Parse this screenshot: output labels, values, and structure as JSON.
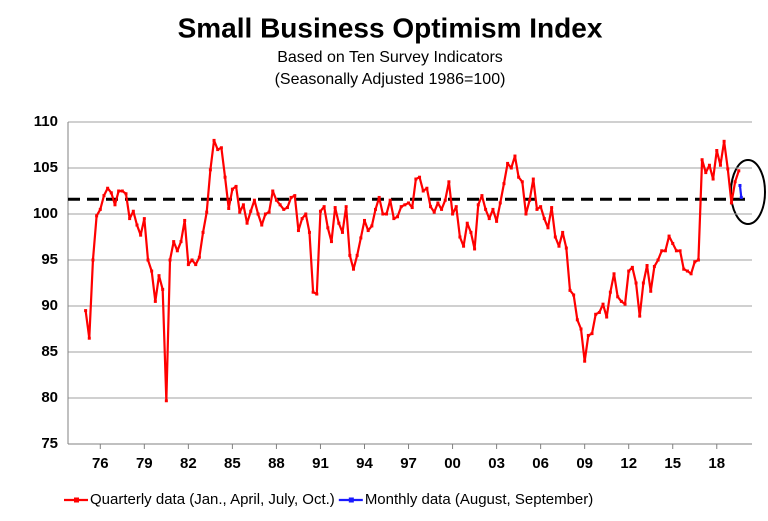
{
  "chart_data": {
    "type": "line",
    "title": "Small Business Optimism Index",
    "subtitle": [
      "Based on Ten Survey Indicators",
      "(Seasonally Adjusted 1986=100)"
    ],
    "xlim": [
      1973.8,
      2020.4
    ],
    "xticks": [
      {
        "value": 1976,
        "label": "76"
      },
      {
        "value": 1979,
        "label": "79"
      },
      {
        "value": 1982,
        "label": "82"
      },
      {
        "value": 1985,
        "label": "85"
      },
      {
        "value": 1988,
        "label": "88"
      },
      {
        "value": 1991,
        "label": "91"
      },
      {
        "value": 1994,
        "label": "94"
      },
      {
        "value": 1997,
        "label": "97"
      },
      {
        "value": 2000,
        "label": "00"
      },
      {
        "value": 2003,
        "label": "03"
      },
      {
        "value": 2006,
        "label": "06"
      },
      {
        "value": 2009,
        "label": "09"
      },
      {
        "value": 2012,
        "label": "12"
      },
      {
        "value": 2015,
        "label": "15"
      },
      {
        "value": 2018,
        "label": "18"
      }
    ],
    "ylim": [
      75,
      110
    ],
    "yticks": [
      75,
      80,
      85,
      90,
      95,
      100,
      105,
      110
    ],
    "grid": true,
    "reference_line": {
      "value": 101.6,
      "color": "#000000",
      "style": "dashed"
    },
    "legend": "bottom",
    "series": [
      {
        "name": "Quarterly data (Jan., April, July, Oct.)",
        "color": "#ff0000",
        "x": [
          1975,
          1975.25,
          1975.5,
          1975.75,
          1976,
          1976.25,
          1976.5,
          1976.75,
          1977,
          1977.25,
          1977.5,
          1977.75,
          1978,
          1978.25,
          1978.5,
          1978.75,
          1979,
          1979.25,
          1979.5,
          1979.75,
          1980,
          1980.25,
          1980.5,
          1980.75,
          1981,
          1981.25,
          1981.5,
          1981.75,
          1982,
          1982.25,
          1982.5,
          1982.75,
          1983,
          1983.25,
          1983.5,
          1983.75,
          1984,
          1984.25,
          1984.5,
          1984.75,
          1985,
          1985.25,
          1985.5,
          1985.75,
          1986,
          1986.25,
          1986.5,
          1986.75,
          1987,
          1987.25,
          1987.5,
          1987.75,
          1988,
          1988.25,
          1988.5,
          1988.75,
          1989,
          1989.25,
          1989.5,
          1989.75,
          1990,
          1990.25,
          1990.5,
          1990.75,
          1991,
          1991.25,
          1991.5,
          1991.75,
          1992,
          1992.25,
          1992.5,
          1992.75,
          1993,
          1993.25,
          1993.5,
          1993.75,
          1994,
          1994.25,
          1994.5,
          1994.75,
          1995,
          1995.25,
          1995.5,
          1995.75,
          1996,
          1996.25,
          1996.5,
          1996.75,
          1997,
          1997.25,
          1997.5,
          1997.75,
          1998,
          1998.25,
          1998.5,
          1998.75,
          1999,
          1999.25,
          1999.5,
          1999.75,
          2000,
          2000.25,
          2000.5,
          2000.75,
          2001,
          2001.25,
          2001.5,
          2001.75,
          2002,
          2002.25,
          2002.5,
          2002.75,
          2003,
          2003.25,
          2003.5,
          2003.75,
          2004,
          2004.25,
          2004.5,
          2004.75,
          2005,
          2005.25,
          2005.5,
          2005.75,
          2006,
          2006.25,
          2006.5,
          2006.75,
          2007,
          2007.25,
          2007.5,
          2007.75,
          2008,
          2008.25,
          2008.5,
          2008.75,
          2009,
          2009.25,
          2009.5,
          2009.75,
          2010,
          2010.25,
          2010.5,
          2010.75,
          2011,
          2011.25,
          2011.5,
          2011.75,
          2012,
          2012.25,
          2012.5,
          2012.75,
          2013,
          2013.25,
          2013.5,
          2013.75,
          2014,
          2014.25,
          2014.5,
          2014.75,
          2015,
          2015.25,
          2015.5,
          2015.75,
          2016,
          2016.25,
          2016.5,
          2016.75,
          2017,
          2017.25,
          2017.5,
          2017.75,
          2018,
          2018.25,
          2018.5,
          2018.75,
          2019,
          2019.25,
          2019.5
        ],
        "values": [
          89.5,
          86.5,
          95,
          99.8,
          100.5,
          102,
          102.8,
          102.3,
          101,
          102.5,
          102.5,
          102.2,
          99.5,
          100.3,
          98.8,
          97.7,
          99.5,
          95,
          93.8,
          90.5,
          93.3,
          91.8,
          79.7,
          95,
          97,
          96,
          97,
          99.3,
          94.5,
          95,
          94.5,
          95.3,
          98,
          100.2,
          104.8,
          108,
          107,
          107.2,
          104,
          100.6,
          102.7,
          103,
          100.2,
          101,
          99,
          100.3,
          101.5,
          100,
          98.8,
          100,
          100.2,
          102.5,
          101.5,
          101,
          100.5,
          100.7,
          101.8,
          102,
          98.2,
          99.5,
          100,
          98,
          91.5,
          91.3,
          100.3,
          100.8,
          98.5,
          97,
          100.7,
          99,
          98,
          100.8,
          95.5,
          94,
          95.5,
          97.4,
          99.3,
          98.2,
          98.7,
          100.5,
          101.8,
          100,
          100,
          101.5,
          99.5,
          99.7,
          100.8,
          101,
          101.2,
          100.7,
          103.8,
          104,
          102.5,
          102.8,
          100.8,
          100.2,
          101.2,
          100.5,
          101.5,
          103.5,
          100,
          100.8,
          97.5,
          96.5,
          99,
          98,
          96.2,
          101,
          102,
          100.5,
          99.5,
          100.5,
          99.2,
          101.2,
          103.3,
          105.5,
          105,
          106.3,
          104,
          103.5,
          100,
          101.5,
          103.8,
          100.5,
          100.8,
          99.5,
          98.5,
          100.7,
          97.5,
          96.5,
          98,
          96.3,
          91.7,
          91.2,
          88.5,
          87.5,
          84,
          86.8,
          87,
          89.1,
          89.3,
          90.2,
          88.8,
          91.5,
          93.5,
          91,
          90.5,
          90.2,
          93.8,
          94.2,
          92.5,
          88.9,
          92.5,
          94.4,
          91.6,
          94.3,
          95,
          96,
          96,
          97.6,
          96.8,
          96,
          96,
          94,
          93.8,
          93.5,
          94.8,
          95,
          105.9,
          104.5,
          105.3,
          103.8,
          106.9,
          105.3,
          107.9,
          104.9,
          101.2,
          103.5,
          104.7
        ]
      },
      {
        "name": "Monthly data (August, September)",
        "color": "#1a1aff",
        "x": [
          2019.58,
          2019.67
        ],
        "values": [
          103.1,
          101.8
        ]
      }
    ]
  }
}
